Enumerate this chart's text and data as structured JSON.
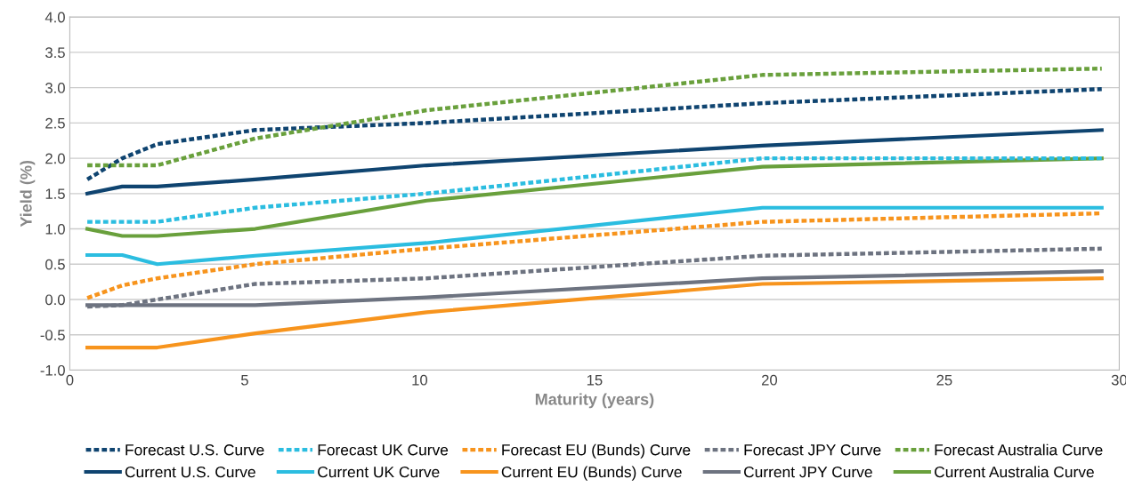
{
  "chart_data": {
    "type": "line",
    "xlabel": "Maturity (years)",
    "ylabel": "Yield (%)",
    "x": [
      0.5,
      1.5,
      2.5,
      5.3,
      10.2,
      19.8,
      29.5
    ],
    "xlim": [
      0,
      30
    ],
    "xticks": [
      0,
      5,
      10,
      15,
      20,
      25,
      30
    ],
    "ylim": [
      -1.0,
      4.0
    ],
    "yticks": [
      {
        "value": -1.0,
        "label": "-1.0"
      },
      {
        "value": -0.5,
        "label": "-0.5"
      },
      {
        "value": 0.0,
        "label": "0.0"
      },
      {
        "value": 0.5,
        "label": "0.5"
      },
      {
        "value": 1.0,
        "label": "1.0"
      },
      {
        "value": 1.5,
        "label": "1.5"
      },
      {
        "value": 2.0,
        "label": "2.0"
      },
      {
        "value": 2.5,
        "label": "2.5"
      },
      {
        "value": 3.0,
        "label": "3.0"
      },
      {
        "value": 3.5,
        "label": "3.5"
      },
      {
        "value": 4.0,
        "label": "4.0"
      }
    ],
    "grid": "y",
    "legend": "bottom",
    "marker": "none",
    "series": [
      {
        "name": "Forecast U.S. Curve",
        "color": "#0f4470",
        "line_style": "dotted",
        "values": [
          1.7,
          2.0,
          2.2,
          2.4,
          2.5,
          2.78,
          2.98
        ]
      },
      {
        "name": "Forecast UK Curve",
        "color": "#2bbde0",
        "line_style": "dotted",
        "values": [
          1.1,
          1.1,
          1.1,
          1.3,
          1.5,
          2.0,
          2.0
        ]
      },
      {
        "name": "Forecast EU (Bunds) Curve",
        "color": "#f7941d",
        "line_style": "dotted",
        "values": [
          0.02,
          0.2,
          0.3,
          0.5,
          0.72,
          1.1,
          1.22
        ]
      },
      {
        "name": "Forecast JPY Curve",
        "color": "#6d7380",
        "line_style": "dotted",
        "values": [
          -0.1,
          -0.08,
          0.0,
          0.22,
          0.3,
          0.62,
          0.72
        ]
      },
      {
        "name": "Forecast Australia Curve",
        "color": "#69a03c",
        "line_style": "dotted",
        "values": [
          1.9,
          1.9,
          1.9,
          2.28,
          2.68,
          3.18,
          3.27
        ]
      },
      {
        "name": "Current U.S. Curve",
        "color": "#0f4470",
        "line_style": "solid",
        "values": [
          1.5,
          1.6,
          1.6,
          1.7,
          1.9,
          2.18,
          2.4
        ]
      },
      {
        "name": "Current UK Curve",
        "color": "#2bbde0",
        "line_style": "solid",
        "values": [
          0.63,
          0.63,
          0.5,
          0.62,
          0.8,
          1.3,
          1.3
        ]
      },
      {
        "name": "Current EU (Bunds) Curve",
        "color": "#f7941d",
        "line_style": "solid",
        "values": [
          -0.68,
          -0.68,
          -0.68,
          -0.48,
          -0.18,
          0.22,
          0.3
        ]
      },
      {
        "name": "Current JPY Curve",
        "color": "#6d7380",
        "line_style": "solid",
        "values": [
          -0.08,
          -0.08,
          -0.08,
          -0.08,
          0.03,
          0.3,
          0.4
        ]
      },
      {
        "name": "Current Australia Curve",
        "color": "#69a03c",
        "line_style": "solid",
        "values": [
          1.0,
          0.9,
          0.9,
          1.0,
          1.4,
          1.88,
          2.0
        ]
      }
    ]
  }
}
